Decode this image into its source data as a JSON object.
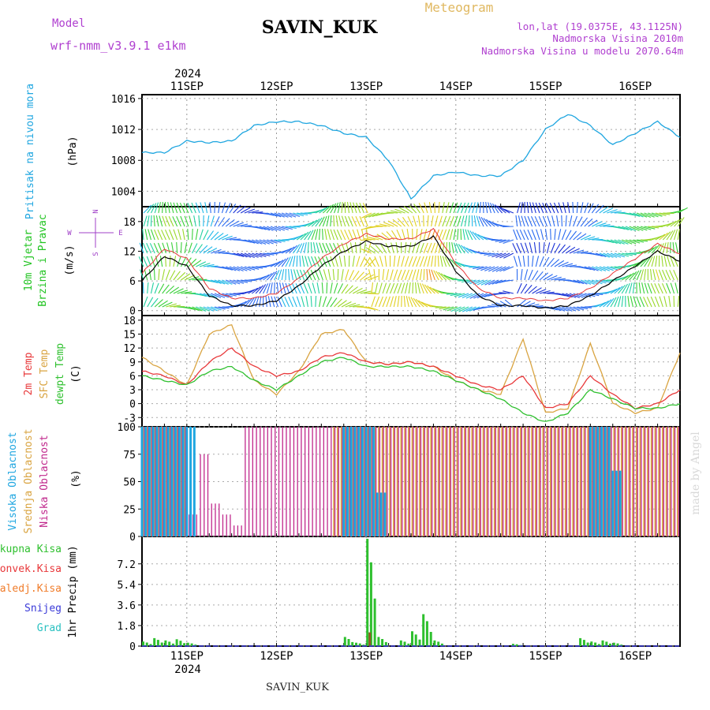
{
  "header": {
    "title": "SAVIN_KUK",
    "model_label": "Model",
    "model_name": "wrf-nmm_v3.9.1 e1km",
    "meteogram_label": "Meteogram",
    "lonlat": "lon,lat (19.0375E, 43.1125N)",
    "elevation": "Nadmorska Visina 2010m",
    "model_elevation": "Nadmorska Visina u modelu 2070.64m",
    "footer_station": "SAVIN_KUK",
    "watermark": "made by Angel"
  },
  "time_axis": {
    "year": "2024",
    "day_labels": [
      "11SEP",
      "12SEP",
      "13SEP",
      "14SEP",
      "15SEP",
      "16SEP"
    ],
    "start_hour": 12,
    "hours": 144
  },
  "colors": {
    "pressure": "#1fa6e0",
    "wind_label": "#22c422",
    "temp2m": "#e8383a",
    "sfc": "#d9a441",
    "dew": "#2ec02e",
    "cloud_high": "#1fa6e0",
    "cloud_mid": "#d9a441",
    "cloud_low": "#c0288c",
    "rain_total": "#2ec02e",
    "rain_conv": "#e8383a",
    "rain_frozen": "#f07c2a",
    "snow": "#3a3ad8",
    "hail": "#28c0c0",
    "compass": "#a040c8",
    "header_purple": "#b040d0",
    "header_gold": "#e0b860"
  },
  "panels": {
    "pressure": {
      "label": "Pritisak na nivou mora",
      "unit": "(hPa)",
      "ticks": [
        1004,
        1008,
        1012,
        1016
      ]
    },
    "wind": {
      "label1": "10m Vjetar",
      "label2": "Brzina i Pravac",
      "unit": "(m/s)",
      "ticks": [
        0,
        6,
        12,
        18
      ],
      "compass": {
        "n": "N",
        "s": "S",
        "e": "E",
        "w": "W"
      }
    },
    "temp": {
      "label_2m": "2m Temp",
      "label_sfc": "SFC Temp",
      "label_dew": "dewpt Temp",
      "unit": "(C)",
      "ticks": [
        -3,
        0,
        3,
        6,
        9,
        12,
        15,
        18
      ]
    },
    "cloud": {
      "label_high": "Visoka Oblacnost",
      "label_mid": "Srednja Oblacnost",
      "label_low": "Niska Oblacnost",
      "unit": "(%)",
      "ticks": [
        0,
        25,
        50,
        75,
        100
      ]
    },
    "precip": {
      "labels": [
        "Ukupna Kisa",
        "Konvek.Kisa",
        "Zaledj.Kisa",
        "Snijeg",
        "Grad"
      ],
      "unit": "1hr Precip (mm)",
      "ticks": [
        "0",
        "1.8",
        "3.6",
        "5.4",
        "7.2"
      ]
    }
  },
  "chart_data": [
    {
      "type": "line",
      "name_hint": "pressure",
      "x_hours": [
        0,
        6,
        12,
        18,
        24,
        30,
        36,
        42,
        48,
        54,
        60,
        66,
        72,
        78,
        84,
        90,
        96,
        102,
        108,
        114,
        120,
        126,
        132,
        138,
        144
      ],
      "series": [
        {
          "values": [
            1009,
            1009,
            1010.5,
            1010.3,
            1010.5,
            1012.5,
            1013,
            1013,
            1012.5,
            1011.5,
            1011,
            1008,
            1003,
            1006,
            1006.5,
            1006,
            1006,
            1008,
            1012,
            1014,
            1012.5,
            1010,
            1011.5,
            1013,
            1011
          ]
        }
      ],
      "ylim": [
        1002,
        1016.5
      ]
    },
    {
      "type": "line",
      "name_hint": "wind_speed",
      "x_hours": [
        0,
        6,
        12,
        18,
        24,
        30,
        36,
        42,
        48,
        54,
        60,
        66,
        72,
        78,
        84,
        90,
        96,
        102,
        108,
        114,
        120,
        126,
        132,
        138,
        144
      ],
      "series": [
        {
          "values": [
            6,
            11,
            9,
            3,
            1,
            1,
            2,
            5,
            9,
            12,
            14,
            13,
            13,
            15,
            8,
            3,
            1,
            1,
            0.5,
            1,
            3,
            6,
            9,
            12,
            10
          ]
        }
      ],
      "ylim": [
        -1,
        21
      ]
    },
    {
      "type": "line",
      "name_hint": "temperature",
      "x_hours": [
        0,
        6,
        12,
        18,
        24,
        30,
        36,
        42,
        48,
        54,
        60,
        66,
        72,
        78,
        84,
        90,
        96,
        102,
        108,
        114,
        120,
        126,
        132,
        138,
        144
      ],
      "series": [
        {
          "label_ref": "panels.temp.label_2m",
          "values": [
            7,
            6,
            4,
            9,
            12,
            8,
            6,
            7,
            10,
            11,
            9,
            8.5,
            9,
            8,
            6,
            4,
            3,
            6,
            -1,
            0,
            6,
            2,
            -1,
            0,
            3
          ]
        },
        {
          "label_ref": "panels.temp.label_sfc",
          "values": [
            10,
            7,
            4,
            15,
            17,
            5,
            2,
            7,
            15,
            16,
            9,
            8.5,
            9,
            8,
            5,
            3,
            2,
            14,
            -2,
            -1,
            13,
            0,
            -2,
            -1,
            11
          ]
        },
        {
          "label_ref": "panels.temp.label_dew",
          "values": [
            6,
            5,
            4,
            7,
            8,
            5,
            3,
            6,
            9,
            10,
            8,
            8,
            8,
            7,
            5,
            3,
            1,
            -2,
            -4,
            -2,
            3,
            1,
            -1,
            -1,
            0
          ]
        }
      ],
      "ylim": [
        -5,
        19
      ]
    },
    {
      "type": "bar",
      "name_hint": "cloud_cover",
      "x_hours": [
        0,
        3,
        6,
        9,
        12,
        15,
        18,
        21,
        24,
        27,
        30,
        33,
        36,
        39,
        42,
        45,
        48,
        51,
        54,
        57,
        60,
        63,
        66,
        69,
        72,
        75,
        78,
        81,
        84,
        87,
        90,
        93,
        96,
        99,
        102,
        105,
        108,
        111,
        114,
        117,
        120,
        123,
        126,
        129,
        132,
        135,
        138,
        141
      ],
      "series": [
        {
          "label_ref": "panels.cloud.label_high",
          "values": [
            100,
            100,
            100,
            100,
            100,
            0,
            0,
            0,
            0,
            0,
            0,
            0,
            0,
            0,
            0,
            0,
            0,
            0,
            100,
            100,
            100,
            40,
            0,
            0,
            0,
            0,
            0,
            0,
            0,
            0,
            0,
            0,
            0,
            0,
            0,
            0,
            0,
            0,
            0,
            0,
            100,
            100,
            60,
            0,
            0,
            0,
            0,
            0
          ]
        },
        {
          "label_ref": "panels.cloud.label_mid",
          "values": [
            100,
            100,
            100,
            100,
            0,
            0,
            0,
            0,
            0,
            0,
            0,
            0,
            0,
            0,
            0,
            0,
            0,
            100,
            100,
            100,
            100,
            100,
            100,
            100,
            100,
            100,
            100,
            100,
            100,
            100,
            100,
            100,
            100,
            100,
            100,
            100,
            100,
            100,
            100,
            100,
            100,
            100,
            100,
            100,
            100,
            100,
            100,
            100
          ]
        },
        {
          "label_ref": "panels.cloud.label_low",
          "values": [
            100,
            100,
            100,
            100,
            20,
            75,
            30,
            20,
            10,
            100,
            100,
            100,
            100,
            100,
            100,
            100,
            100,
            100,
            100,
            100,
            100,
            100,
            100,
            100,
            100,
            100,
            100,
            100,
            100,
            100,
            100,
            100,
            100,
            100,
            100,
            100,
            100,
            100,
            100,
            100,
            100,
            100,
            100,
            100,
            100,
            100,
            100,
            100
          ]
        }
      ],
      "ylim": [
        0,
        100
      ]
    },
    {
      "type": "bar",
      "name_hint": "precipitation",
      "x_hours": [
        0,
        3,
        6,
        9,
        12,
        15,
        18,
        21,
        24,
        27,
        30,
        33,
        36,
        39,
        42,
        45,
        48,
        51,
        54,
        57,
        60,
        63,
        66,
        69,
        72,
        75,
        78,
        81,
        84,
        87,
        90,
        93,
        96,
        99,
        102,
        105,
        108,
        111,
        114,
        117,
        120,
        123,
        126,
        129,
        132,
        135,
        138,
        141
      ],
      "series": [
        {
          "label_ref": "panels.precip.labels.0",
          "values": [
            0.4,
            0.7,
            0.5,
            0.6,
            0.3,
            0,
            0,
            0,
            0,
            0,
            0,
            0,
            0,
            0,
            0,
            0,
            0,
            0,
            0.8,
            0.3,
            9.4,
            0.8,
            0,
            0.5,
            1.3,
            2.8,
            0.5,
            0,
            0,
            0,
            0,
            0,
            0,
            0.2,
            0,
            0,
            0,
            0,
            0,
            0.7,
            0.4,
            0.5,
            0.3,
            0,
            0,
            0,
            0,
            0
          ]
        },
        {
          "label_ref": "panels.precip.labels.1",
          "values": [
            0,
            0,
            0,
            0,
            0,
            0,
            0,
            0,
            0,
            0,
            0,
            0,
            0,
            0,
            0,
            0,
            0,
            0,
            0,
            0,
            1.2,
            0,
            0,
            0,
            0,
            0,
            0,
            0,
            0,
            0,
            0,
            0,
            0,
            0,
            0,
            0,
            0,
            0,
            0,
            0,
            0,
            0,
            0,
            0,
            0,
            0,
            0,
            0
          ]
        }
      ],
      "ylim": [
        0,
        9.6
      ]
    }
  ]
}
